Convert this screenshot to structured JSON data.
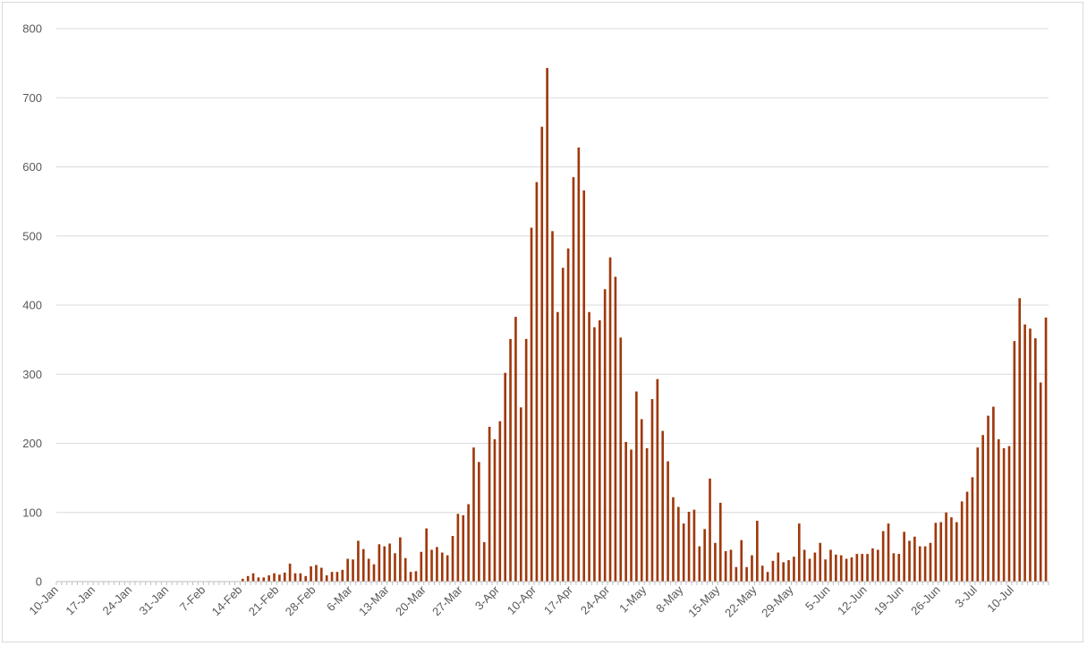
{
  "chart_data": {
    "type": "bar",
    "title": "",
    "xlabel": "",
    "ylabel": "",
    "ylim": [
      0,
      800
    ],
    "yticks": [
      0,
      100,
      200,
      300,
      400,
      500,
      600,
      700,
      800
    ],
    "grid": true,
    "legend": "none",
    "bar_color": "#a0380b",
    "x_start": "10-Jan",
    "x_end": "16-Jul",
    "x_tick_labels": [
      "10-Jan",
      "17-Jan",
      "24-Jan",
      "31-Jan",
      "7-Feb",
      "14-Feb",
      "21-Feb",
      "28-Feb",
      "6-Mar",
      "13-Mar",
      "20-Mar",
      "27-Mar",
      "3-Apr",
      "10-Apr",
      "17-Apr",
      "24-Apr",
      "1-May",
      "8-May",
      "15-May",
      "22-May",
      "29-May",
      "5-Jun",
      "12-Jun",
      "19-Jun",
      "26-Jun",
      "3-Jul",
      "10-Jul"
    ],
    "values": [
      0,
      0,
      0,
      0,
      0,
      0,
      0,
      0,
      0,
      0,
      0,
      0,
      0,
      0,
      0,
      0,
      0,
      0,
      0,
      0,
      0,
      0,
      0,
      0,
      0,
      0,
      0,
      0,
      0,
      0,
      0,
      0,
      0,
      0,
      0,
      4,
      8,
      12,
      6,
      6,
      9,
      12,
      10,
      13,
      26,
      12,
      12,
      8,
      22,
      24,
      20,
      9,
      14,
      14,
      17,
      33,
      32,
      59,
      47,
      33,
      25,
      54,
      51,
      55,
      41,
      64,
      34,
      14,
      15,
      43,
      77,
      46,
      50,
      42,
      38,
      66,
      98,
      96,
      112,
      194,
      173,
      57,
      224,
      206,
      232,
      302,
      351,
      383,
      252,
      351,
      512,
      578,
      658,
      743,
      507,
      390,
      454,
      482,
      585,
      628,
      566,
      390,
      368,
      378,
      423,
      469,
      441,
      353,
      202,
      191,
      275,
      235,
      193,
      264,
      293,
      218,
      174,
      122,
      108,
      84,
      101,
      104,
      51,
      76,
      149,
      56,
      114,
      44,
      46,
      21,
      60,
      21,
      38,
      88,
      23,
      14,
      30,
      42,
      28,
      31,
      36,
      84,
      46,
      33,
      42,
      56,
      32,
      46,
      39,
      38,
      33,
      35,
      40,
      40,
      40,
      48,
      46,
      73,
      84,
      41,
      40,
      72,
      59,
      65,
      51,
      51,
      56,
      85,
      86,
      100,
      93,
      86,
      116,
      130,
      151,
      194,
      212,
      240,
      253,
      206,
      193,
      196,
      348,
      410,
      372,
      366,
      352,
      288,
      382
    ]
  }
}
